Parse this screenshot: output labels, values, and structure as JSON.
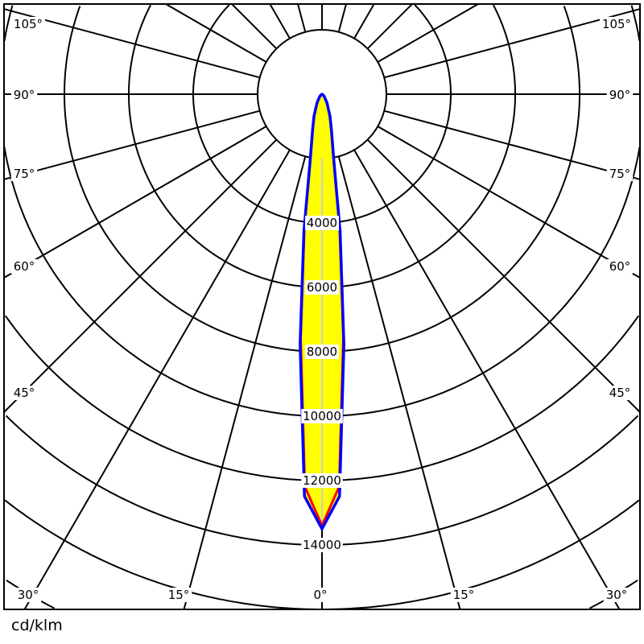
{
  "chart_data": {
    "type": "polar",
    "unit_label": "cd/klm",
    "angle_labels": [
      "0°",
      "15°",
      "30°",
      "45°",
      "60°",
      "75°",
      "90°",
      "105°"
    ],
    "angle_values": [
      0,
      15,
      30,
      45,
      60,
      75,
      90,
      105
    ],
    "ring_values": [
      4000,
      6000,
      8000,
      10000,
      12000,
      14000
    ],
    "ring_labels": [
      "4000",
      "6000",
      "8000",
      "10000",
      "12000",
      "14000"
    ],
    "ring_step": 2000,
    "grid": true,
    "fill_color": "#ffff00",
    "series": [
      {
        "color": "#ff0000",
        "angles": [
          0,
          2.5,
          5,
          7.5,
          10,
          15,
          20,
          30,
          45,
          60,
          90
        ],
        "values": [
          13400,
          12200,
          7600,
          4200,
          2100,
          1100,
          700,
          300,
          100,
          30,
          0
        ]
      },
      {
        "color": "#0000ff",
        "angles": [
          0,
          2.5,
          5,
          7.5,
          10,
          15,
          20,
          30,
          45,
          60,
          90
        ],
        "values": [
          13500,
          12500,
          7800,
          4300,
          2150,
          1120,
          720,
          310,
          100,
          30,
          0
        ]
      }
    ]
  }
}
